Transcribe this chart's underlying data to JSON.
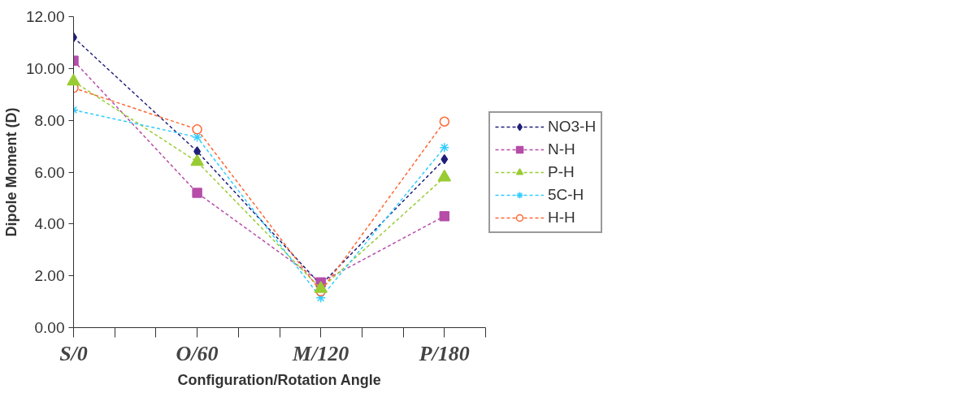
{
  "chart_data": {
    "type": "line",
    "xlabel": "Configuration/Rotation Angle",
    "ylabel": "Dipole Moment (D)",
    "x": [
      0,
      60,
      120,
      180
    ],
    "series": [
      {
        "name": "NO3-H",
        "color": "#1f1f7a",
        "marker": "diamond",
        "values": [
          11.2,
          6.8,
          1.65,
          6.5
        ]
      },
      {
        "name": "N-H",
        "color": "#b64da8",
        "marker": "square",
        "values": [
          10.3,
          5.2,
          1.75,
          4.3
        ]
      },
      {
        "name": "P-H",
        "color": "#99cc33",
        "marker": "triangle",
        "values": [
          9.5,
          6.4,
          1.5,
          5.8
        ]
      },
      {
        "name": "5C-H",
        "color": "#33ccff",
        "marker": "cross",
        "values": [
          8.4,
          7.35,
          1.15,
          6.95
        ]
      },
      {
        "name": "H-H",
        "color": "#ff6633",
        "marker": "circle",
        "values": [
          9.25,
          7.65,
          1.4,
          7.95
        ]
      }
    ],
    "xlim": [
      0,
      200
    ],
    "xticks": [
      {
        "value": 0,
        "label": "S/0"
      },
      {
        "value": 20,
        "label": null
      },
      {
        "value": 40,
        "label": null
      },
      {
        "value": 60,
        "label": "O/60"
      },
      {
        "value": 80,
        "label": null
      },
      {
        "value": 100,
        "label": null
      },
      {
        "value": 120,
        "label": "M/120"
      },
      {
        "value": 140,
        "label": null
      },
      {
        "value": 160,
        "label": null
      },
      {
        "value": 180,
        "label": "P/180"
      },
      {
        "value": 200,
        "label": null
      }
    ],
    "ylim": [
      0,
      12
    ],
    "yticks": [
      {
        "value": 0,
        "label": "0.00"
      },
      {
        "value": 2,
        "label": "2.00"
      },
      {
        "value": 4,
        "label": "4.00"
      },
      {
        "value": 6,
        "label": "6.00"
      },
      {
        "value": 8,
        "label": "8.00"
      },
      {
        "value": 10,
        "label": "10.00"
      },
      {
        "value": 12,
        "label": "12.00"
      }
    ],
    "grid": false,
    "legend": "right",
    "line_style": "dashed"
  }
}
